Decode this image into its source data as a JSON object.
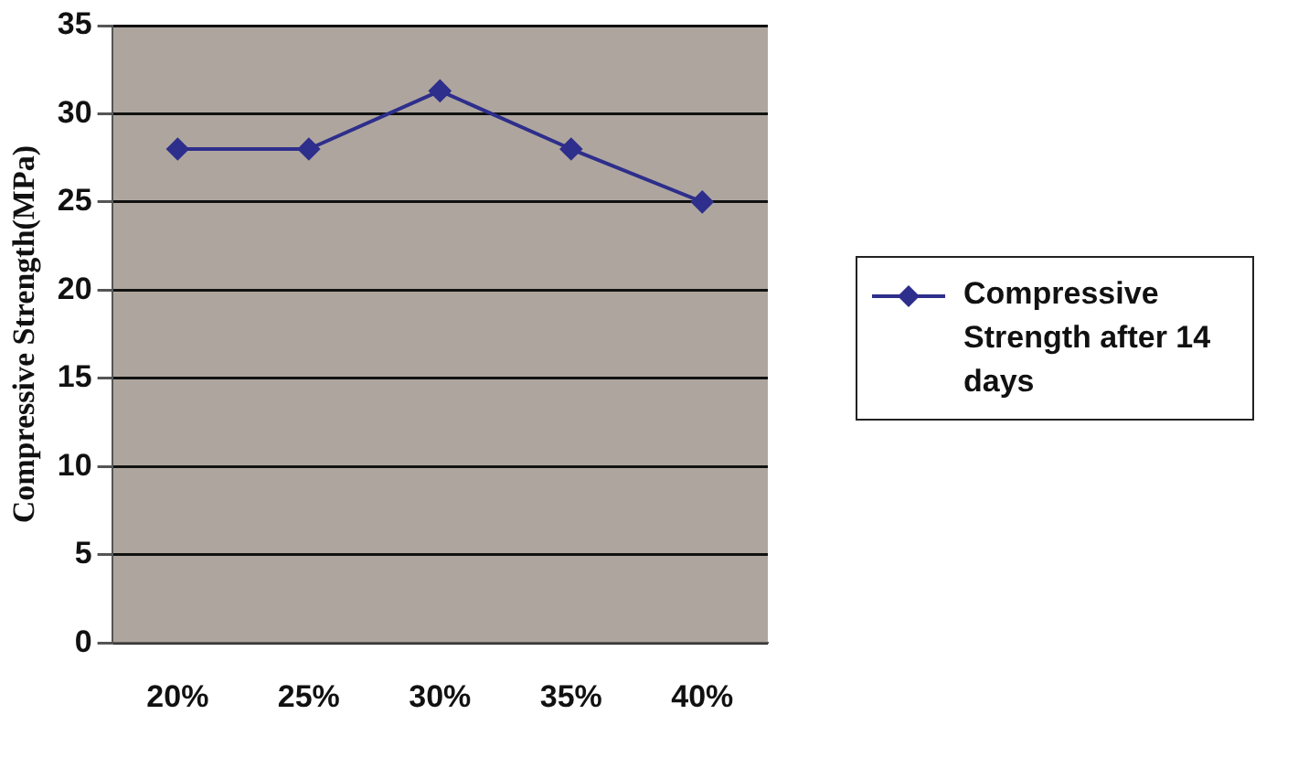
{
  "chart_data": {
    "type": "line",
    "ylabel": "Compressive Strength(MPa)",
    "categories": [
      "20%",
      "25%",
      "30%",
      "35%",
      "40%"
    ],
    "series": [
      {
        "name": "Compressive Strength after 14 days",
        "color": "#2e2e8c",
        "values": [
          28,
          28,
          31.3,
          28,
          25
        ]
      }
    ],
    "ylim": [
      0,
      35
    ],
    "yticks": [
      0,
      5,
      10,
      15,
      20,
      25,
      30,
      35
    ],
    "grid": "y",
    "legend": "right",
    "marker": "diamond",
    "line_style": "solid"
  }
}
